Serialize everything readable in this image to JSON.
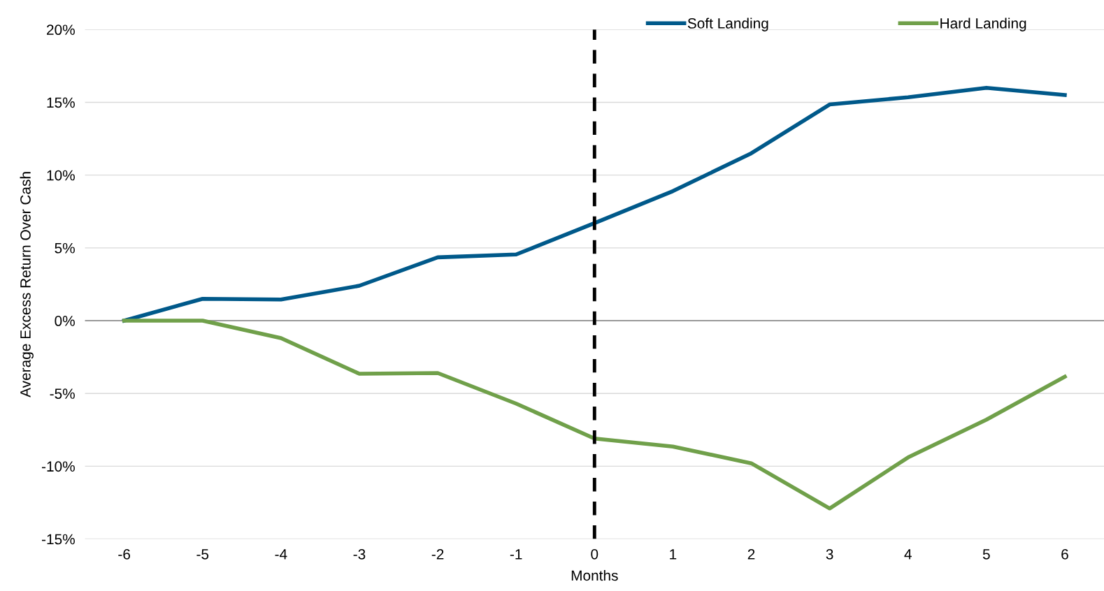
{
  "chart_data": {
    "type": "line",
    "xlabel": "Months",
    "ylabel": "Average Excess Return Over Cash",
    "categories": [
      "-6",
      "-5",
      "-4",
      "-3",
      "-2",
      "-1",
      "0",
      "1",
      "2",
      "3",
      "4",
      "5",
      "6"
    ],
    "series": [
      {
        "name": "Soft Landing",
        "color": "#00598a",
        "values": [
          0,
          1.5,
          1.45,
          2.4,
          4.35,
          4.55,
          6.7,
          8.9,
          11.5,
          14.85,
          15.35,
          16.0,
          15.5
        ]
      },
      {
        "name": "Hard Landing",
        "color": "#70a04a",
        "values": [
          0,
          0,
          -1.2,
          -3.65,
          -3.6,
          -5.7,
          -8.1,
          -8.65,
          -9.8,
          -12.9,
          -9.4,
          -6.8,
          -3.85
        ]
      }
    ],
    "ylim": [
      -15,
      20
    ],
    "yticks": [
      {
        "value": -15,
        "label": "-15%"
      },
      {
        "value": -10,
        "label": "-10%"
      },
      {
        "value": -5,
        "label": "-5%"
      },
      {
        "value": 0,
        "label": "0%"
      },
      {
        "value": 5,
        "label": "5%"
      },
      {
        "value": 10,
        "label": "10%"
      },
      {
        "value": 15,
        "label": "15%"
      },
      {
        "value": 20,
        "label": "20%"
      }
    ],
    "ref_lines": [
      {
        "axis": "x",
        "value": "0",
        "color": "#000000",
        "line_style": "dashed"
      }
    ],
    "grid": "y",
    "legend": "top right",
    "marker": "none",
    "line_style": "solid"
  }
}
